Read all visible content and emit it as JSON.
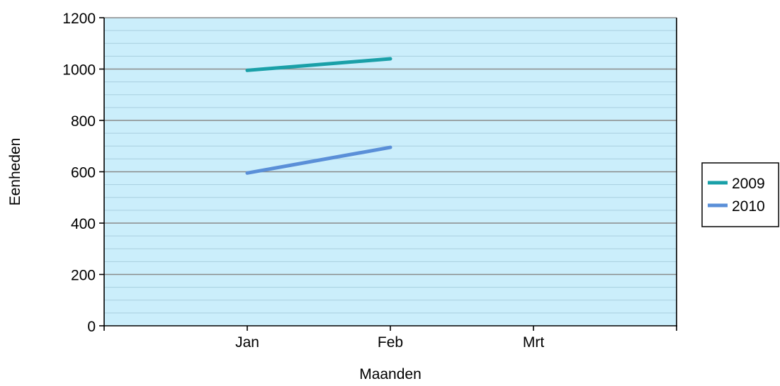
{
  "chart_data": {
    "type": "line",
    "categories": [
      "Jan",
      "Feb",
      "Mrt"
    ],
    "xlabel": "Maanden",
    "ylabel": "Eenheden",
    "ylim": [
      0,
      1200
    ],
    "yticks": [
      0,
      200,
      400,
      600,
      800,
      1000,
      1200
    ],
    "grid": true,
    "legend_position": "right",
    "series": [
      {
        "name": "2009",
        "color": "#1aa0a8",
        "values": [
          995,
          1040,
          null
        ]
      },
      {
        "name": "2010",
        "color": "#5a8fd8",
        "values": [
          595,
          695,
          null
        ]
      }
    ],
    "colors": {
      "plot_background": "#cbeefb",
      "major_grid": "#8a8a8a",
      "minor_grid": "#a9cfdf"
    }
  }
}
